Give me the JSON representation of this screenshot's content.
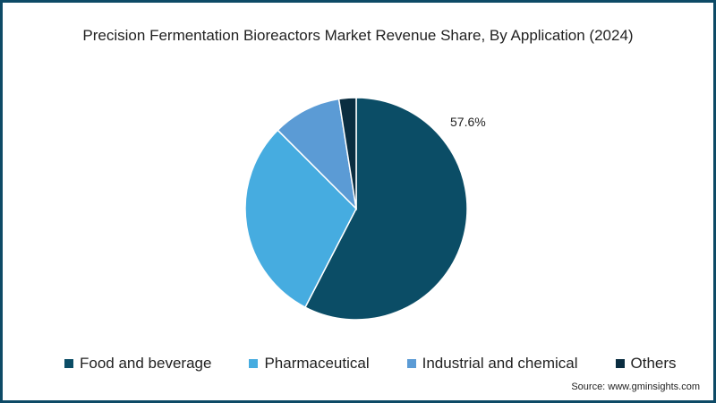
{
  "chart_data": {
    "type": "pie",
    "title": "Precision Fermentation Bioreactors Market Revenue Share, By Application (2024)",
    "categories": [
      "Food and beverage",
      "Pharmaceutical",
      "Industrial and chemical",
      "Others"
    ],
    "values": [
      57.6,
      29.9,
      10.0,
      2.5
    ],
    "colors": [
      "#0b4d66",
      "#46ace0",
      "#5b9bd5",
      "#0a2d40"
    ],
    "annotations": [
      "57.6%"
    ],
    "legend_position": "bottom"
  },
  "title": "Precision Fermentation Bioreactors Market Revenue Share, By Application (2024)",
  "label": "57.6%",
  "legend": [
    {
      "label": "Food and beverage",
      "color": "#0b4d66"
    },
    {
      "label": "Pharmaceutical",
      "color": "#46ace0"
    },
    {
      "label": "Industrial and chemical",
      "color": "#5b9bd5"
    },
    {
      "label": "Others",
      "color": "#0a2d40"
    }
  ],
  "source": "Source: www.gminsights.com"
}
